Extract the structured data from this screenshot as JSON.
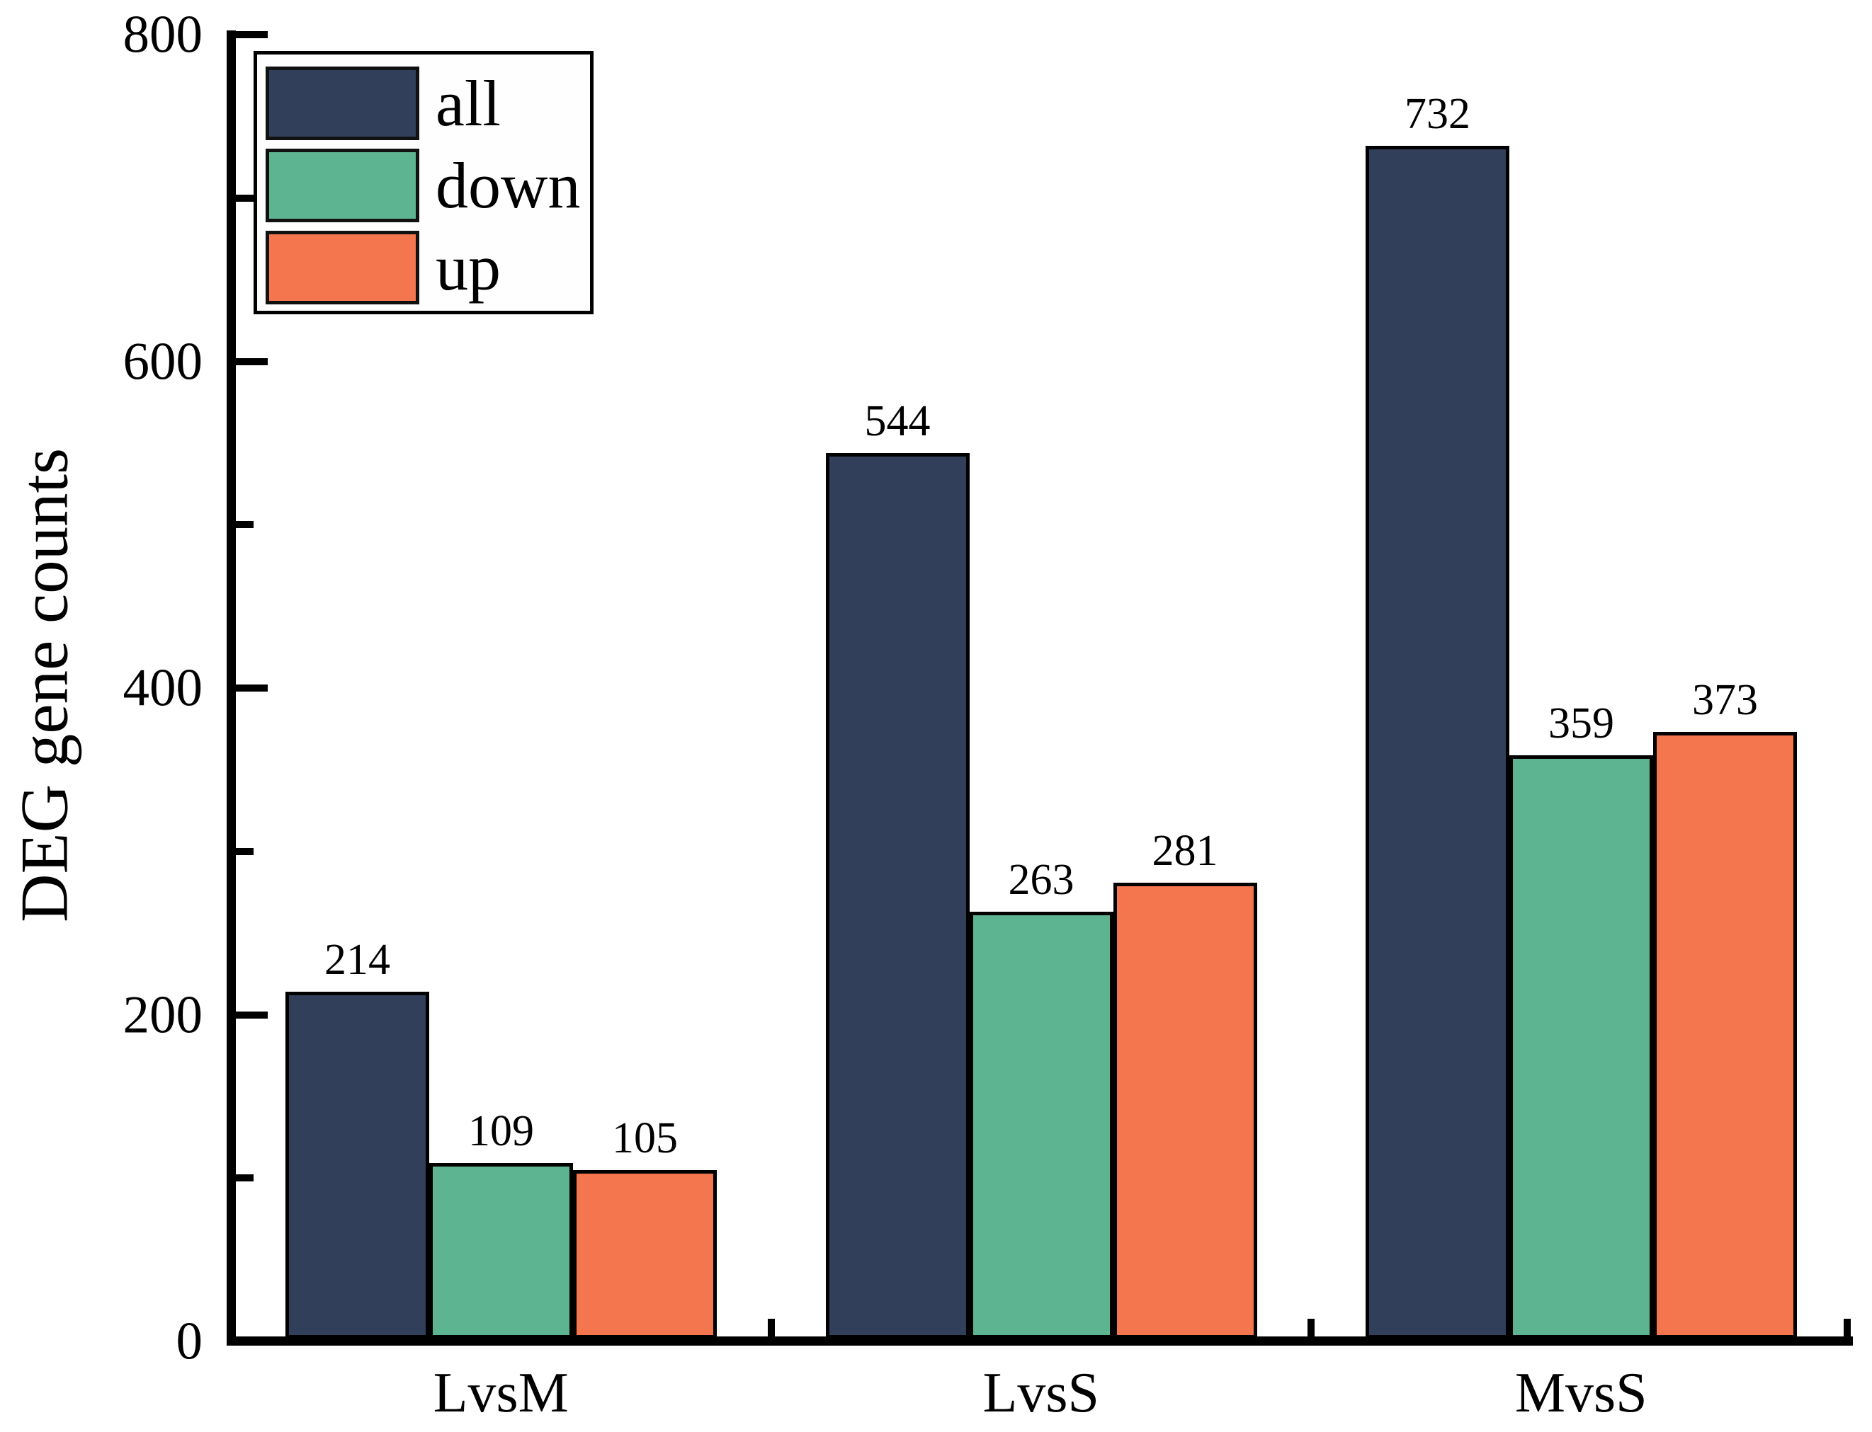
{
  "figure": {
    "background": "#ffffff"
  },
  "chart_data": {
    "type": "bar",
    "title": "",
    "xlabel": "",
    "ylabel": "DEG gene counts",
    "categories": [
      "LvsM",
      "LvsS",
      "MvsS"
    ],
    "series": [
      {
        "name": "all",
        "color": "#323f5a",
        "values": [
          214,
          544,
          732
        ]
      },
      {
        "name": "down",
        "color": "#5db490",
        "values": [
          109,
          263,
          359
        ]
      },
      {
        "name": "up",
        "color": "#f4764e",
        "values": [
          105,
          281,
          373
        ]
      }
    ],
    "bar_value_labels": {
      "all": [
        "214",
        "544",
        "732"
      ],
      "down": [
        "109",
        "263",
        "359"
      ],
      "up": [
        "105",
        "281",
        "373"
      ]
    },
    "ylim": [
      0,
      800
    ],
    "y_major_ticks": [
      0,
      200,
      400,
      600,
      800
    ],
    "y_major_tick_labels": [
      "0",
      "200",
      "400",
      "600",
      "800"
    ],
    "y_minor_ticks": [
      100,
      300,
      500,
      700
    ],
    "grid": false,
    "bar_edge_color": "#000000",
    "legend": {
      "position": "top-left",
      "entries": [
        "all",
        "down",
        "up"
      ]
    }
  }
}
